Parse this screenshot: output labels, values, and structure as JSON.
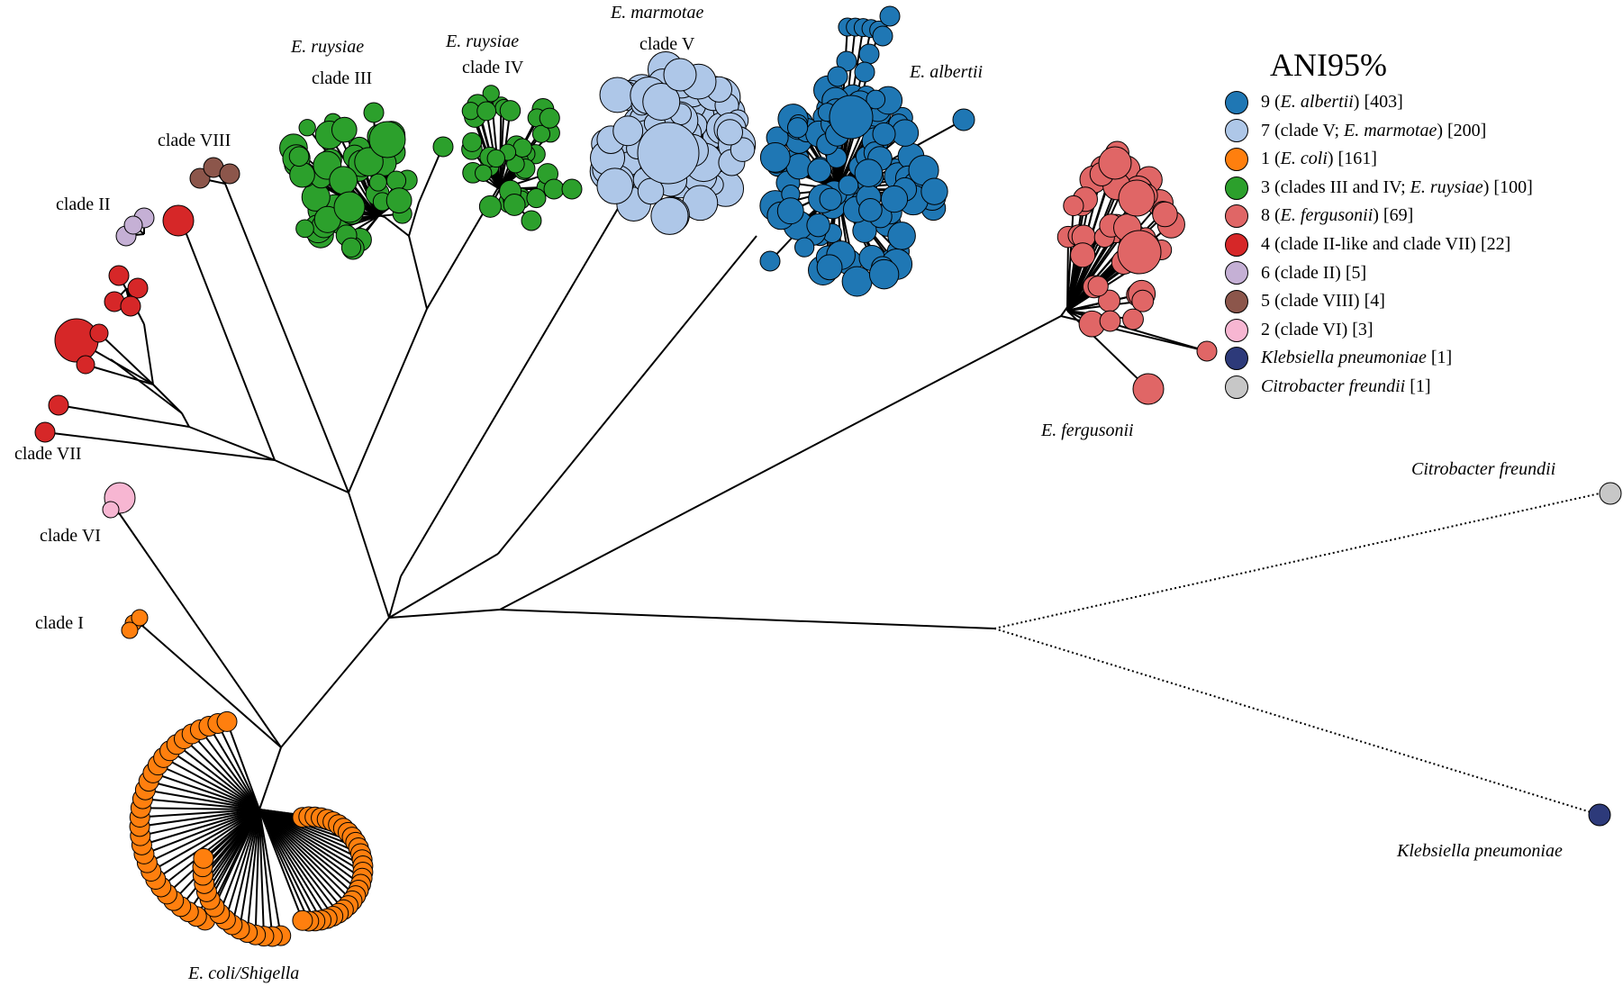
{
  "colors": {
    "albertii": "#1f77b4",
    "marmotae": "#aec7e8",
    "coli": "#ff7f0e",
    "ruysiae": "#2ca02c",
    "fergusonii": "#e06666",
    "clade_II_like_VII": "#d62728",
    "clade_II": "#c5b0d5",
    "clade_VIII": "#8c564b",
    "clade_VI": "#f7b6d2",
    "klebsiella": "#2d3a7a",
    "citrobacter": "#c7c7c7"
  },
  "labels": {
    "e_ruysiae_1": "E. ruysiae",
    "clade_III": "clade III",
    "e_ruysiae_2": "E. ruysiae",
    "clade_IV": "clade IV",
    "e_marmotae": "E. marmotae",
    "clade_V": "clade V",
    "e_albertii": "E. albertii",
    "clade_VIII": "clade VIII",
    "clade_II": "clade II",
    "clade_VII": "clade VII",
    "clade_VI": "clade VI",
    "clade_I": "clade I",
    "e_coli_shigella": "E. coli/Shigella",
    "e_fergusonii": "E. fergusonii",
    "citrobacter": "Citrobacter freundii",
    "klebsiella": "Klebsiella pneumoniae"
  },
  "legend": {
    "title": "ANI95%",
    "items": [
      {
        "pre": "9 (",
        "it": "E. albertii",
        "post": ") [403]",
        "color_key": "albertii"
      },
      {
        "pre": "7 (clade V; ",
        "it": "E. marmotae",
        "post": ") [200]",
        "color_key": "marmotae"
      },
      {
        "pre": "1 (",
        "it": "E. coli",
        "post": ") [161]",
        "color_key": "coli"
      },
      {
        "pre": "3 (clades III and IV; ",
        "it": "E. ruysiae",
        "post": ") [100]",
        "color_key": "ruysiae"
      },
      {
        "pre": "8 (",
        "it": "E. fergusonii",
        "post": ") [69]",
        "color_key": "fergusonii"
      },
      {
        "pre": "4 (clade II-like and clade VII) [22]",
        "it": "",
        "post": "",
        "color_key": "clade_II_like_VII"
      },
      {
        "pre": "6 (clade II) [5]",
        "it": "",
        "post": "",
        "color_key": "clade_II"
      },
      {
        "pre": "5 (clade VIII) [4]",
        "it": "",
        "post": "",
        "color_key": "clade_VIII"
      },
      {
        "pre": "2 (clade VI) [3]",
        "it": "",
        "post": "",
        "color_key": "clade_VI"
      },
      {
        "pre": "",
        "it": "Klebsiella pneumoniae",
        "post": " [1]",
        "color_key": "klebsiella"
      },
      {
        "pre": "",
        "it": "Citrobacter freundii",
        "post": " [1]",
        "color_key": "citrobacter"
      }
    ]
  }
}
